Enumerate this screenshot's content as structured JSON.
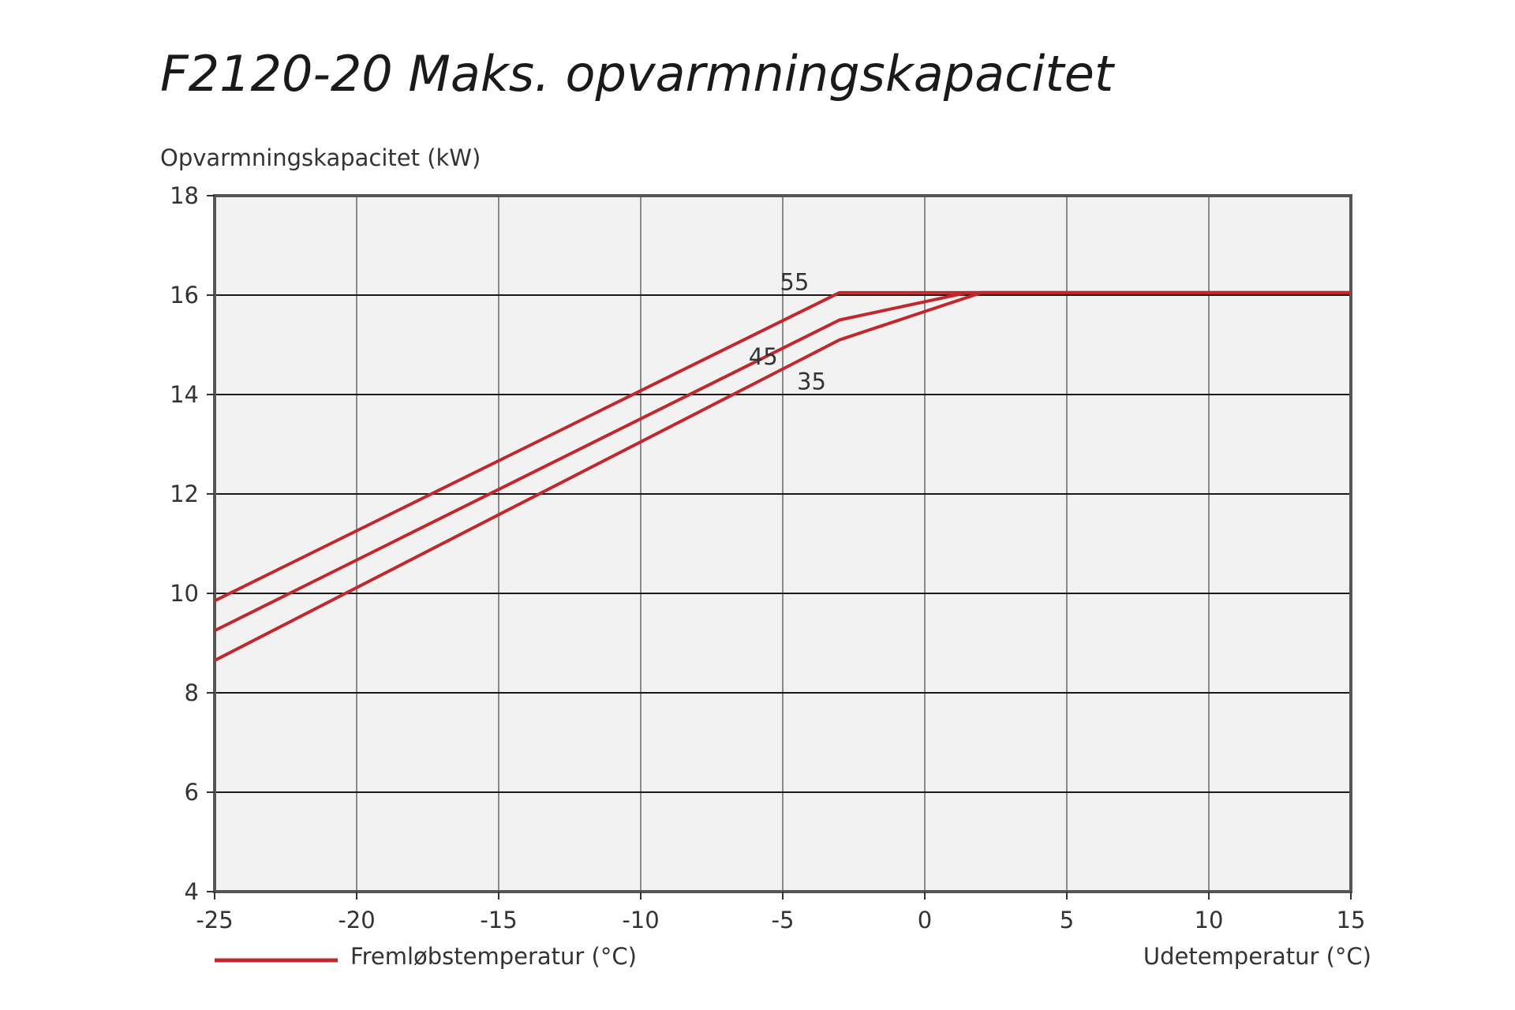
{
  "chart_data": {
    "type": "line",
    "title": "F2120-20 Maks. opvarmningskapacitet",
    "ylabel": "Opvarmningskapacitet (kW)",
    "xlabel": "Udetemperatur (°C)",
    "legend_label": "Fremløbstemperatur (°C)",
    "legend_position": "bottom-left",
    "xlim": [
      -25,
      15
    ],
    "ylim": [
      4,
      18
    ],
    "x_ticks": [
      "-25",
      "-20",
      "-15",
      "-10",
      "-5",
      "0",
      "5",
      "10",
      "15"
    ],
    "y_ticks": [
      "4",
      "6",
      "8",
      "10",
      "12",
      "14",
      "16",
      "18"
    ],
    "grid": true,
    "colors": {
      "line": "#c0282d",
      "grid": "#1a1a1a",
      "vgrid": "#8a8a8a",
      "plot_bg": "#f2f2f2",
      "frame": "#555555"
    },
    "series": [
      {
        "name": "55",
        "x": [
          -25,
          -3,
          15
        ],
        "y": [
          9.85,
          16.05,
          16.05
        ]
      },
      {
        "name": "45",
        "x": [
          -25,
          -3,
          1.5,
          15
        ],
        "y": [
          9.25,
          15.5,
          16.05,
          16.05
        ]
      },
      {
        "name": "35",
        "x": [
          -25,
          -3,
          2,
          15
        ],
        "y": [
          8.65,
          15.1,
          16.05,
          16.05
        ]
      }
    ]
  }
}
